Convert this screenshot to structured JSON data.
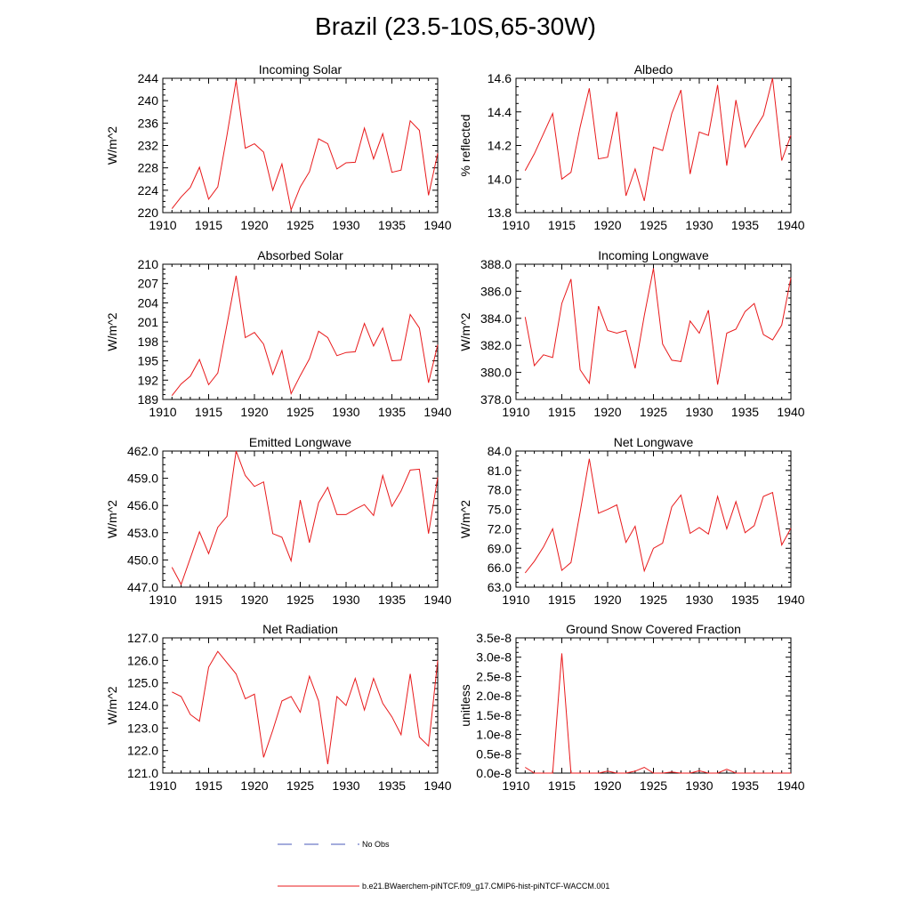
{
  "figure": {
    "title": "Brazil (23.5-10S,65-30W)",
    "line_color": "#e8191b",
    "obs_color": "#4a5ab8"
  },
  "legend": {
    "entries": [
      {
        "label": "No Obs",
        "style": "dashed",
        "color": "#4a5ab8"
      },
      {
        "label": "b.e21.BWaerchem-piNTCF.f09_g17.CMIP6-hist-piNTCF-WACCM.001",
        "style": "solid",
        "color": "#e8191b"
      }
    ]
  },
  "chart_data": [
    {
      "type": "line",
      "title": "Incoming Solar",
      "ylabel": "W/m^2",
      "xlim": [
        1910,
        1940
      ],
      "ylim": [
        220,
        244
      ],
      "xticks": [
        1910,
        1915,
        1920,
        1925,
        1930,
        1935,
        1940
      ],
      "yticks": [
        "220",
        "224",
        "228",
        "232",
        "236",
        "240",
        "244"
      ],
      "x": [
        1911,
        1912,
        1913,
        1914,
        1915,
        1916,
        1917,
        1918,
        1919,
        1920,
        1921,
        1922,
        1923,
        1924,
        1925,
        1926,
        1927,
        1928,
        1929,
        1930,
        1931,
        1932,
        1933,
        1934,
        1935,
        1936,
        1937,
        1938,
        1939,
        1940
      ],
      "values": [
        220.7,
        222.8,
        224.5,
        228.1,
        222.4,
        224.6,
        233.8,
        243.6,
        231.5,
        232.3,
        230.8,
        224.0,
        228.7,
        220.5,
        224.6,
        227.3,
        233.2,
        232.3,
        227.8,
        228.9,
        229.0,
        235.1,
        229.6,
        234.1,
        227.2,
        227.6,
        236.4,
        234.7,
        223.1,
        230.6
      ]
    },
    {
      "type": "line",
      "title": "Albedo",
      "ylabel": "% reflected",
      "xlim": [
        1910,
        1940
      ],
      "ylim": [
        13.8,
        14.6
      ],
      "xticks": [
        1910,
        1915,
        1920,
        1925,
        1930,
        1935,
        1940
      ],
      "yticks": [
        "13.8",
        "14.0",
        "14.2",
        "14.4",
        "14.6"
      ],
      "x": [
        1911,
        1912,
        1913,
        1914,
        1915,
        1916,
        1917,
        1918,
        1919,
        1920,
        1921,
        1922,
        1923,
        1924,
        1925,
        1926,
        1927,
        1928,
        1929,
        1930,
        1931,
        1932,
        1933,
        1934,
        1935,
        1936,
        1937,
        1938,
        1939,
        1940
      ],
      "values": [
        14.05,
        14.15,
        14.27,
        14.39,
        14.0,
        14.04,
        14.31,
        14.54,
        14.12,
        14.13,
        14.4,
        13.9,
        14.06,
        13.87,
        14.19,
        14.17,
        14.39,
        14.53,
        14.03,
        14.28,
        14.26,
        14.56,
        14.08,
        14.47,
        14.19,
        14.29,
        14.38,
        14.6,
        14.11,
        14.26
      ]
    },
    {
      "type": "line",
      "title": "Absorbed Solar",
      "ylabel": "W/m^2",
      "xlim": [
        1910,
        1940
      ],
      "ylim": [
        189,
        210
      ],
      "xticks": [
        1910,
        1915,
        1920,
        1925,
        1930,
        1935,
        1940
      ],
      "yticks": [
        "189",
        "192",
        "195",
        "198",
        "201",
        "204",
        "207",
        "210"
      ],
      "x": [
        1911,
        1912,
        1913,
        1914,
        1915,
        1916,
        1917,
        1918,
        1919,
        1920,
        1921,
        1922,
        1923,
        1924,
        1925,
        1926,
        1927,
        1928,
        1929,
        1930,
        1931,
        1932,
        1933,
        1934,
        1935,
        1936,
        1937,
        1938,
        1939,
        1940
      ],
      "values": [
        189.6,
        191.4,
        192.6,
        195.2,
        191.3,
        193.1,
        200.6,
        208.2,
        198.6,
        199.4,
        197.6,
        192.9,
        196.6,
        189.9,
        192.7,
        195.3,
        199.6,
        198.6,
        195.8,
        196.3,
        196.4,
        200.8,
        197.3,
        200.1,
        195.0,
        195.1,
        202.2,
        200.1,
        191.6,
        197.5
      ]
    },
    {
      "type": "line",
      "title": "Incoming Longwave",
      "ylabel": "W/m^2",
      "xlim": [
        1910,
        1940
      ],
      "ylim": [
        378,
        388
      ],
      "xticks": [
        1910,
        1915,
        1920,
        1925,
        1930,
        1935,
        1940
      ],
      "yticks": [
        "378.0",
        "380.0",
        "382.0",
        "384.0",
        "386.0",
        "388.0"
      ],
      "x": [
        1911,
        1912,
        1913,
        1914,
        1915,
        1916,
        1917,
        1918,
        1919,
        1920,
        1921,
        1922,
        1923,
        1924,
        1925,
        1926,
        1927,
        1928,
        1929,
        1930,
        1931,
        1932,
        1933,
        1934,
        1935,
        1936,
        1937,
        1938,
        1939,
        1940
      ],
      "values": [
        384.1,
        380.5,
        381.3,
        381.1,
        385.1,
        386.9,
        380.2,
        379.2,
        384.9,
        383.1,
        382.9,
        383.1,
        380.3,
        384.2,
        387.7,
        382.1,
        380.9,
        380.8,
        383.8,
        382.9,
        384.6,
        379.1,
        382.9,
        383.2,
        384.5,
        385.1,
        382.8,
        382.4,
        383.5,
        387.0
      ]
    },
    {
      "type": "line",
      "title": "Emitted Longwave",
      "ylabel": "W/m^2",
      "xlim": [
        1910,
        1940
      ],
      "ylim": [
        447,
        462
      ],
      "xticks": [
        1910,
        1915,
        1920,
        1925,
        1930,
        1935,
        1940
      ],
      "yticks": [
        "447.0",
        "450.0",
        "453.0",
        "456.0",
        "459.0",
        "462.0"
      ],
      "x": [
        1911,
        1912,
        1913,
        1914,
        1915,
        1916,
        1917,
        1918,
        1919,
        1920,
        1921,
        1922,
        1923,
        1924,
        1925,
        1926,
        1927,
        1928,
        1929,
        1930,
        1931,
        1932,
        1933,
        1934,
        1935,
        1936,
        1937,
        1938,
        1939,
        1940
      ],
      "values": [
        449.2,
        447.3,
        450.2,
        453.1,
        450.7,
        453.6,
        454.8,
        462.0,
        459.3,
        458.1,
        458.6,
        452.9,
        452.5,
        449.9,
        456.6,
        451.9,
        456.3,
        458.0,
        455.0,
        455.0,
        455.6,
        456.1,
        454.9,
        459.3,
        455.9,
        457.6,
        459.9,
        460.0,
        452.9,
        459.1
      ]
    },
    {
      "type": "line",
      "title": "Net Longwave",
      "ylabel": "W/m^2",
      "xlim": [
        1910,
        1940
      ],
      "ylim": [
        63,
        84
      ],
      "xticks": [
        1910,
        1915,
        1920,
        1925,
        1930,
        1935,
        1940
      ],
      "yticks": [
        "63.0",
        "66.0",
        "69.0",
        "72.0",
        "75.0",
        "78.0",
        "81.0",
        "84.0"
      ],
      "x": [
        1911,
        1912,
        1913,
        1914,
        1915,
        1916,
        1917,
        1918,
        1919,
        1920,
        1921,
        1922,
        1923,
        1924,
        1925,
        1926,
        1927,
        1928,
        1929,
        1930,
        1931,
        1932,
        1933,
        1934,
        1935,
        1936,
        1937,
        1938,
        1939,
        1940
      ],
      "values": [
        65.2,
        67.0,
        69.2,
        72.0,
        65.6,
        66.8,
        74.6,
        82.8,
        74.4,
        75.0,
        75.7,
        69.9,
        72.4,
        65.5,
        69.0,
        69.8,
        75.4,
        77.2,
        71.3,
        72.2,
        71.2,
        77.0,
        72.0,
        76.2,
        71.4,
        72.5,
        77.0,
        77.6,
        69.5,
        72.1
      ]
    },
    {
      "type": "line",
      "title": "Net Radiation",
      "ylabel": "W/m^2",
      "xlim": [
        1910,
        1940
      ],
      "ylim": [
        121,
        127
      ],
      "xticks": [
        1910,
        1915,
        1920,
        1925,
        1930,
        1935,
        1940
      ],
      "yticks": [
        "121.0",
        "122.0",
        "123.0",
        "124.0",
        "125.0",
        "126.0",
        "127.0"
      ],
      "x": [
        1911,
        1912,
        1913,
        1914,
        1915,
        1916,
        1917,
        1918,
        1919,
        1920,
        1921,
        1922,
        1923,
        1924,
        1925,
        1926,
        1927,
        1928,
        1929,
        1930,
        1931,
        1932,
        1933,
        1934,
        1935,
        1936,
        1937,
        1938,
        1939,
        1940
      ],
      "values": [
        124.6,
        124.4,
        123.6,
        123.3,
        125.7,
        126.4,
        125.9,
        125.4,
        124.3,
        124.5,
        121.7,
        122.9,
        124.2,
        124.4,
        123.7,
        125.3,
        124.2,
        121.4,
        124.4,
        124.0,
        125.2,
        123.8,
        125.2,
        124.1,
        123.5,
        122.7,
        125.4,
        122.6,
        122.2,
        126.0
      ]
    },
    {
      "type": "line",
      "title": "Ground Snow Covered Fraction",
      "ylabel": "unitless",
      "xlim": [
        1910,
        1940
      ],
      "ylim": [
        0.0,
        3.5e-08
      ],
      "xticks": [
        1910,
        1915,
        1920,
        1925,
        1930,
        1935,
        1940
      ],
      "yticks": [
        "0.0e-8",
        "0.5e-8",
        "1.0e-8",
        "1.5e-8",
        "2.0e-8",
        "2.5e-8",
        "3.0e-8",
        "3.5e-8"
      ],
      "x": [
        1911,
        1912,
        1913,
        1914,
        1915,
        1916,
        1917,
        1918,
        1919,
        1920,
        1921,
        1922,
        1923,
        1924,
        1925,
        1926,
        1927,
        1928,
        1929,
        1930,
        1931,
        1932,
        1933,
        1934,
        1935,
        1936,
        1937,
        1938,
        1939,
        1940
      ],
      "values": [
        1.5e-09,
        0,
        0,
        0,
        3.1e-08,
        0,
        0,
        0,
        0,
        5e-10,
        0,
        0,
        5e-10,
        1.5e-09,
        0,
        0,
        3e-10,
        0,
        0,
        6e-10,
        0,
        0,
        1e-09,
        0,
        0,
        0,
        0,
        0,
        0,
        0
      ]
    }
  ]
}
